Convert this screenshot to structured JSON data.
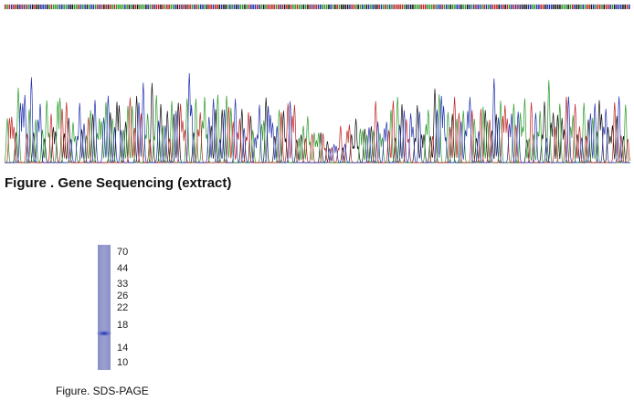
{
  "sequencing": {
    "caption": "Figure . Gene Sequencing (extract)"
  },
  "sds_page": {
    "markers": [
      "70",
      "44",
      "33",
      "26",
      "22",
      "18",
      "14",
      "10"
    ],
    "caption": "Figure. SDS-PAGE"
  }
}
